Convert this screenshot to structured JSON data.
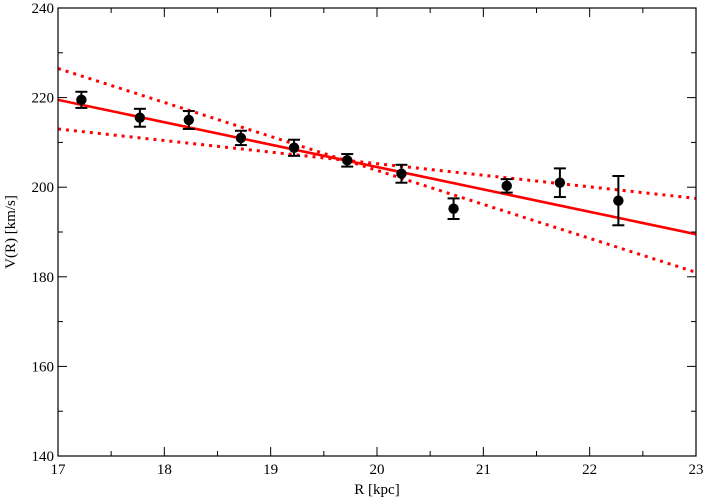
{
  "chart_data": {
    "type": "scatter",
    "title": "",
    "xlabel": "R [kpc]",
    "ylabel": "V(R) [km/s]",
    "xlim": [
      17,
      23
    ],
    "ylim": [
      140,
      240
    ],
    "x_ticks": [
      17,
      18,
      19,
      20,
      21,
      22,
      23
    ],
    "y_ticks": [
      140,
      160,
      180,
      200,
      220,
      240
    ],
    "grid": false,
    "legend": "none",
    "points": {
      "color": "#000000",
      "x": [
        17.22,
        17.77,
        18.23,
        18.72,
        19.22,
        19.72,
        20.23,
        20.72,
        21.22,
        21.72,
        22.27
      ],
      "y": [
        219.5,
        215.5,
        215.0,
        211.0,
        208.8,
        206.0,
        203.0,
        195.2,
        200.3,
        201.0,
        197.0
      ],
      "err": [
        1.8,
        2.0,
        2.0,
        1.6,
        1.8,
        1.4,
        2.0,
        2.3,
        1.5,
        3.2,
        5.5
      ]
    },
    "fit_line": {
      "color": "#ff0000",
      "style": "solid",
      "x": [
        17,
        23
      ],
      "y": [
        219.5,
        189.5
      ]
    },
    "bound_upper": {
      "color": "#ff0000",
      "style": "dotted",
      "x": [
        17,
        23
      ],
      "y": [
        226.5,
        181.0
      ]
    },
    "bound_lower": {
      "color": "#ff0000",
      "style": "dotted",
      "x": [
        17,
        23
      ],
      "y": [
        213.0,
        197.5
      ]
    }
  }
}
